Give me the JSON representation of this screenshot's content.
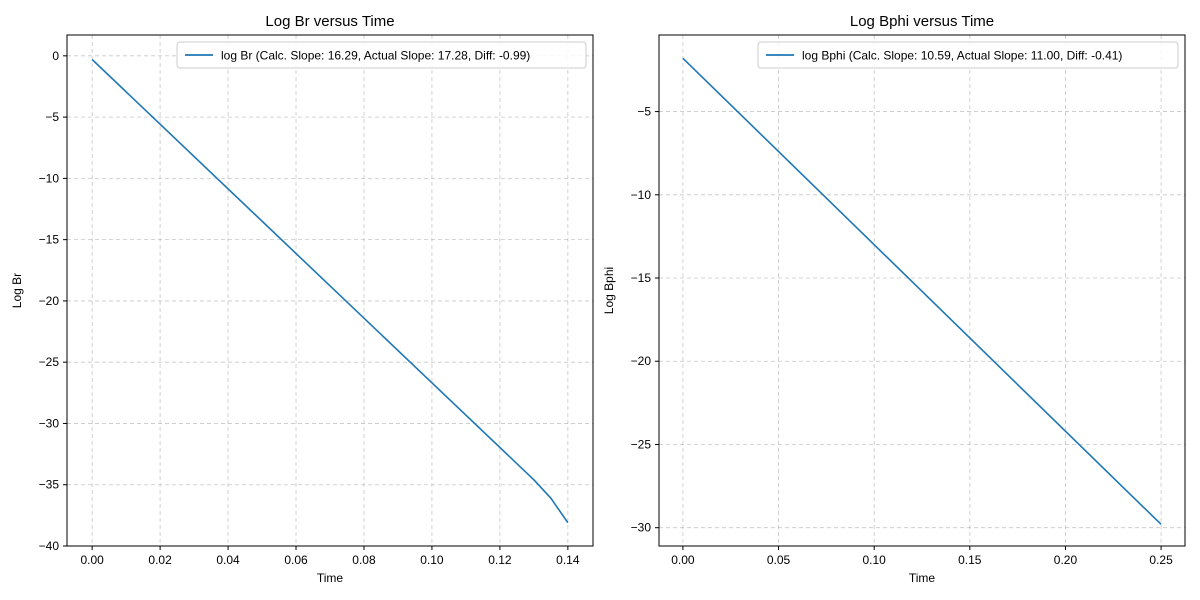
{
  "chart_data": [
    {
      "type": "line",
      "title": "Log Br versus Time",
      "xlabel": "Time",
      "ylabel": "Log Br",
      "xlim": [
        -0.0074,
        0.1474
      ],
      "ylim": [
        -40,
        1.7
      ],
      "xticks": [
        0.0,
        0.02,
        0.04,
        0.06,
        0.08,
        0.1,
        0.12,
        0.14
      ],
      "xtick_labels": [
        "0.00",
        "0.02",
        "0.04",
        "0.06",
        "0.08",
        "0.10",
        "0.12",
        "0.14"
      ],
      "yticks": [
        0,
        -5,
        -10,
        -15,
        -20,
        -25,
        -30,
        -35,
        -40
      ],
      "ytick_labels": [
        "0",
        "−5",
        "−10",
        "−15",
        "−20",
        "−25",
        "−30",
        "−35",
        "−40"
      ],
      "grid": true,
      "legend_position": "top-right",
      "series": [
        {
          "name": "log Br (Calc. Slope: 16.29, Actual Slope: 17.28, Diff: -0.99)",
          "color": "#1f77b4",
          "x": [
            0.0,
            0.13,
            0.135,
            0.14
          ],
          "y": [
            -0.3,
            -34.6,
            -36.1,
            -38.1
          ]
        }
      ]
    },
    {
      "type": "line",
      "title": "Log Bphi versus Time",
      "xlabel": "Time",
      "ylabel": "Log Bphi",
      "xlim": [
        -0.0125,
        0.2625
      ],
      "ylim": [
        -31.1,
        -0.4
      ],
      "xticks": [
        0.0,
        0.05,
        0.1,
        0.15,
        0.2,
        0.25
      ],
      "xtick_labels": [
        "0.00",
        "0.05",
        "0.10",
        "0.15",
        "0.20",
        "0.25"
      ],
      "yticks": [
        -5,
        -10,
        -15,
        -20,
        -25,
        -30
      ],
      "ytick_labels": [
        "−5",
        "−10",
        "−15",
        "−20",
        "−25",
        "−30"
      ],
      "grid": true,
      "legend_position": "top-right",
      "series": [
        {
          "name": "log Bphi (Calc. Slope: 10.59, Actual Slope: 11.00, Diff: -0.41)",
          "color": "#1f77b4",
          "x": [
            0.0,
            0.25
          ],
          "y": [
            -1.8,
            -29.8
          ]
        }
      ]
    }
  ]
}
